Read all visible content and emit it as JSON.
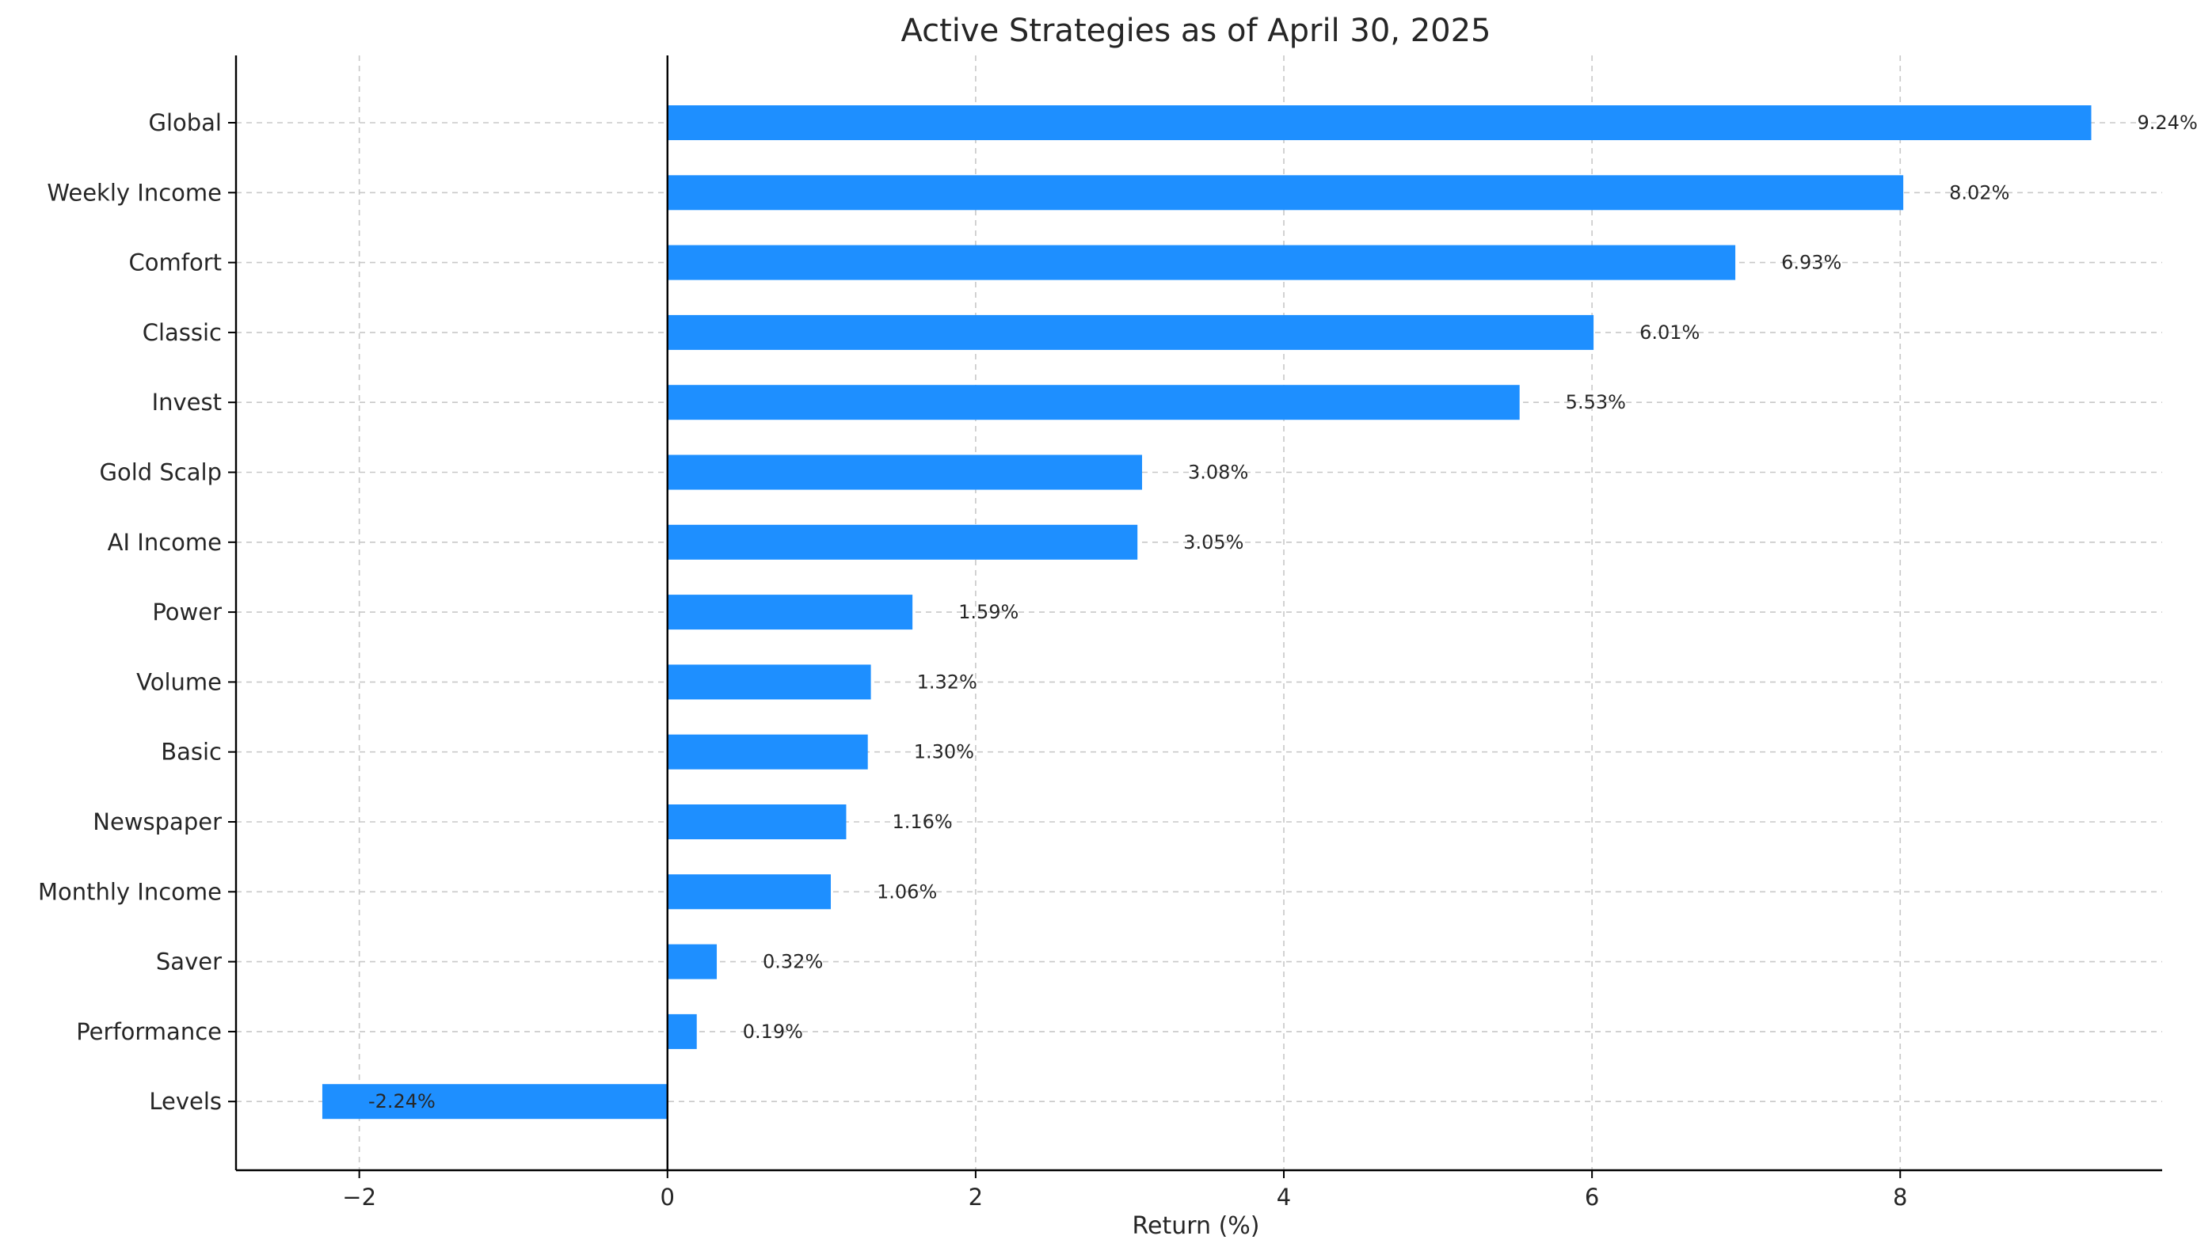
{
  "chart_data": {
    "type": "bar",
    "orientation": "horizontal",
    "title": "Active Strategies as of April 30, 2025",
    "xlabel": "Return (%)",
    "ylabel": "",
    "xlim": [
      -2.8,
      9.7
    ],
    "xticks": [
      -2,
      0,
      2,
      4,
      6,
      8
    ],
    "xtick_labels": [
      "−2",
      "0",
      "2",
      "4",
      "6",
      "8"
    ],
    "grid": true,
    "bar_color": "#1E8FFF",
    "categories": [
      "Global",
      "Weekly Income",
      "Comfort",
      "Classic",
      "Invest",
      "Gold Scalp",
      "AI Income",
      "Power",
      "Volume",
      "Basic",
      "Newspaper",
      "Monthly Income",
      "Saver",
      "Performance",
      "Levels"
    ],
    "values": [
      9.24,
      8.02,
      6.93,
      6.01,
      5.53,
      3.08,
      3.05,
      1.59,
      1.32,
      1.3,
      1.16,
      1.06,
      0.32,
      0.19,
      -2.24
    ],
    "value_labels": [
      "9.24%",
      "8.02%",
      "6.93%",
      "6.01%",
      "5.53%",
      "3.08%",
      "3.05%",
      "1.59%",
      "1.32%",
      "1.30%",
      "1.16%",
      "1.06%",
      "0.32%",
      "0.19%",
      "-2.24%"
    ]
  }
}
